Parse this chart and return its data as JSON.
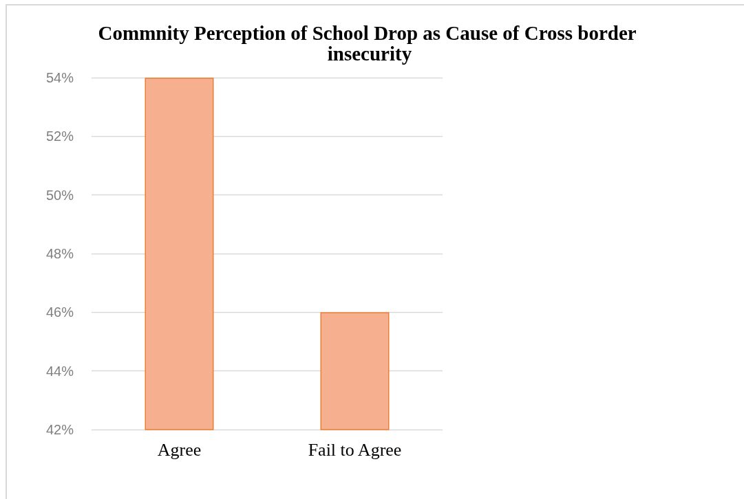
{
  "chart_data": {
    "type": "bar",
    "title": "Commnity Perception of School Drop as Cause of Cross border insecurity",
    "categories": [
      "Agree",
      "Fail to Agree"
    ],
    "values": [
      54,
      46
    ],
    "color": "#f6b08f",
    "ylim": [
      42,
      54
    ],
    "yticks": [
      {
        "value": 42,
        "label": "42%"
      },
      {
        "value": 44,
        "label": "44%"
      },
      {
        "value": 46,
        "label": "46%"
      },
      {
        "value": 48,
        "label": "48%"
      },
      {
        "value": 50,
        "label": "50%"
      },
      {
        "value": 52,
        "label": "52%"
      },
      {
        "value": 54,
        "label": "54%"
      }
    ],
    "grid": "y"
  }
}
